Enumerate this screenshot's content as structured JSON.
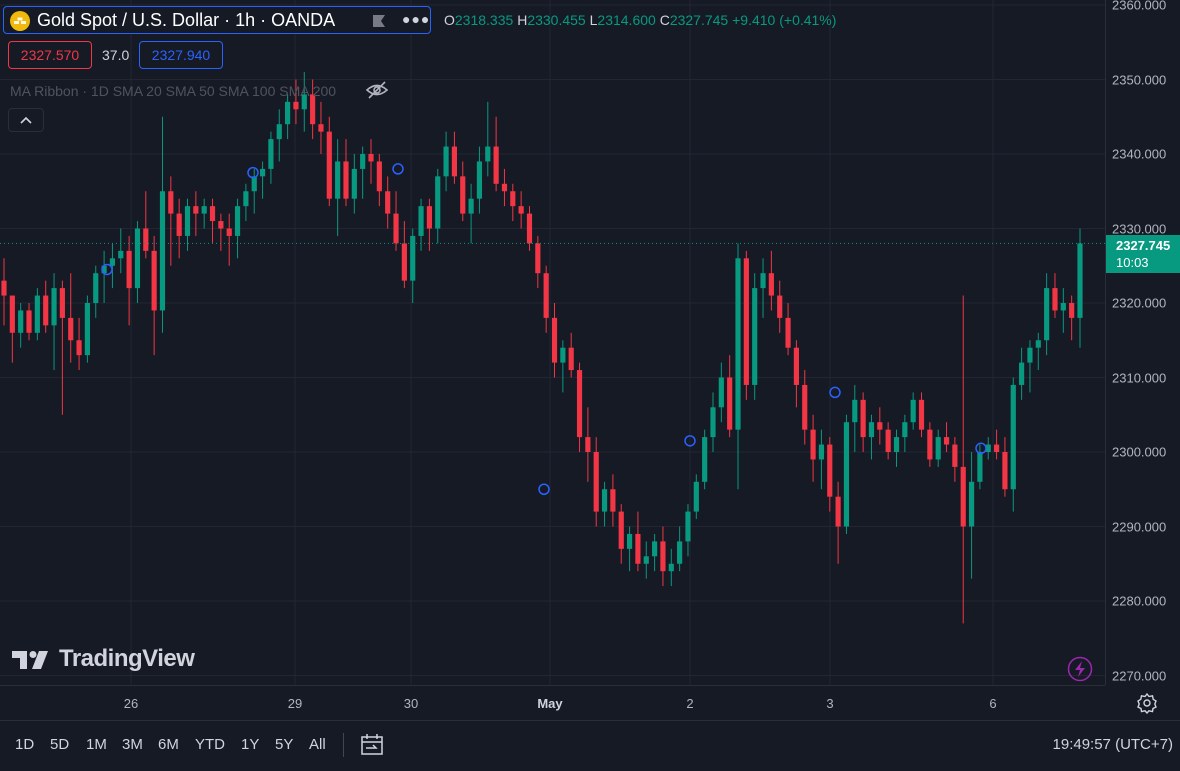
{
  "header": {
    "symbol_title": "Gold Spot / U.S. Dollar · 1h · OANDA",
    "more_icon": "ellipsis-icon",
    "ohlc": {
      "o_label": "O",
      "o": "2318.335",
      "h_label": "H",
      "h": "2330.455",
      "l_label": "L",
      "l": "2314.600",
      "c_label": "C",
      "c": "2327.745",
      "change": "+9.410 (+0.41%)"
    }
  },
  "trade": {
    "sell": "2327.570",
    "spread": "37.0",
    "buy": "2327.940"
  },
  "indicator": {
    "label": "MA Ribbon · 1D SMA 20 SMA 50 SMA 100 SMA 200",
    "eye_icon": "eye-slash-icon"
  },
  "price_axis": {
    "ticks": [
      "2360.000",
      "2350.000",
      "2340.000",
      "2330.000",
      "2320.000",
      "2310.000",
      "2300.000",
      "2290.000",
      "2280.000",
      "2270.000"
    ]
  },
  "last_price": {
    "value": "2327.745",
    "countdown": "10:03"
  },
  "time_axis": {
    "ticks": [
      {
        "label": "26"
      },
      {
        "label": "29"
      },
      {
        "label": "30"
      },
      {
        "label": "May",
        "bold": true
      },
      {
        "label": "2"
      },
      {
        "label": "3"
      },
      {
        "label": "6"
      }
    ]
  },
  "logo": {
    "text": "TradingView"
  },
  "bottom_bar": {
    "ranges": [
      "1D",
      "5D",
      "1M",
      "3M",
      "6M",
      "YTD",
      "1Y",
      "5Y",
      "All"
    ],
    "clock": "19:49:57 (UTC+7)"
  },
  "colors": {
    "up": "#089981",
    "down": "#f23645",
    "background": "#161a25",
    "grid": "#232632",
    "accent": "#2962ff"
  },
  "chart_data": {
    "type": "candlestick",
    "symbol": "XAUUSD",
    "interval": "1h",
    "ylim": [
      2266,
      2361
    ],
    "candles": [
      [
        2323,
        2326,
        2317,
        2321
      ],
      [
        2321,
        2321,
        2312,
        2316
      ],
      [
        2316,
        2320,
        2314,
        2319
      ],
      [
        2319,
        2320,
        2315,
        2316
      ],
      [
        2316,
        2322,
        2315,
        2321
      ],
      [
        2321,
        2323,
        2316,
        2317
      ],
      [
        2317,
        2324,
        2311,
        2322
      ],
      [
        2322,
        2323,
        2305,
        2318
      ],
      [
        2318,
        2324,
        2312,
        2315
      ],
      [
        2315,
        2318,
        2311,
        2313
      ],
      [
        2313,
        2321,
        2312,
        2320
      ],
      [
        2320,
        2325,
        2318,
        2324
      ],
      [
        2324,
        2327,
        2320,
        2325
      ],
      [
        2325,
        2328,
        2322,
        2326
      ],
      [
        2326,
        2330,
        2324,
        2327
      ],
      [
        2327,
        2329,
        2317,
        2322
      ],
      [
        2322,
        2331,
        2320,
        2330
      ],
      [
        2330,
        2335,
        2326,
        2327
      ],
      [
        2327,
        2329,
        2313,
        2319
      ],
      [
        2319,
        2345,
        2316,
        2335
      ],
      [
        2335,
        2337,
        2325,
        2332
      ],
      [
        2332,
        2334,
        2326,
        2329
      ],
      [
        2329,
        2334,
        2327,
        2333
      ],
      [
        2333,
        2335,
        2329,
        2332
      ],
      [
        2332,
        2334,
        2330,
        2333
      ],
      [
        2333,
        2334,
        2328,
        2331
      ],
      [
        2331,
        2332,
        2327,
        2330
      ],
      [
        2330,
        2332,
        2325,
        2329
      ],
      [
        2329,
        2334,
        2326,
        2333
      ],
      [
        2333,
        2336,
        2331,
        2335
      ],
      [
        2335,
        2338,
        2332,
        2337
      ],
      [
        2337,
        2339,
        2334,
        2338
      ],
      [
        2338,
        2343,
        2336,
        2342
      ],
      [
        2342,
        2346,
        2339,
        2344
      ],
      [
        2344,
        2348,
        2342,
        2347
      ],
      [
        2347,
        2350,
        2344,
        2346
      ],
      [
        2346,
        2351,
        2343,
        2348
      ],
      [
        2348,
        2350,
        2342,
        2344
      ],
      [
        2344,
        2347,
        2340,
        2343
      ],
      [
        2343,
        2345,
        2333,
        2334
      ],
      [
        2334,
        2342,
        2329,
        2339
      ],
      [
        2339,
        2342,
        2333,
        2334
      ],
      [
        2334,
        2340,
        2332,
        2338
      ],
      [
        2338,
        2341,
        2334,
        2340
      ],
      [
        2340,
        2342,
        2336,
        2339
      ],
      [
        2339,
        2340,
        2333,
        2335
      ],
      [
        2335,
        2337,
        2330,
        2332
      ],
      [
        2332,
        2335,
        2327,
        2328
      ],
      [
        2328,
        2331,
        2322,
        2323
      ],
      [
        2323,
        2330,
        2320,
        2329
      ],
      [
        2329,
        2334,
        2327,
        2333
      ],
      [
        2333,
        2334,
        2327,
        2330
      ],
      [
        2330,
        2338,
        2328,
        2337
      ],
      [
        2337,
        2343,
        2335,
        2341
      ],
      [
        2341,
        2343,
        2336,
        2337
      ],
      [
        2337,
        2339,
        2331,
        2332
      ],
      [
        2332,
        2336,
        2328,
        2334
      ],
      [
        2334,
        2341,
        2332,
        2339
      ],
      [
        2339,
        2347,
        2337,
        2341
      ],
      [
        2341,
        2345,
        2335,
        2336
      ],
      [
        2336,
        2338,
        2333,
        2335
      ],
      [
        2335,
        2336,
        2331,
        2333
      ],
      [
        2333,
        2335,
        2330,
        2332
      ],
      [
        2332,
        2333,
        2327,
        2328
      ],
      [
        2328,
        2329,
        2322,
        2324
      ],
      [
        2324,
        2325,
        2316,
        2318
      ],
      [
        2318,
        2320,
        2310,
        2312
      ],
      [
        2312,
        2315,
        2308,
        2314
      ],
      [
        2314,
        2316,
        2310,
        2311
      ],
      [
        2311,
        2312,
        2300,
        2302
      ],
      [
        2302,
        2306,
        2296,
        2300
      ],
      [
        2300,
        2302,
        2290,
        2292
      ],
      [
        2292,
        2296,
        2290,
        2295
      ],
      [
        2295,
        2297,
        2290,
        2292
      ],
      [
        2292,
        2293,
        2285,
        2287
      ],
      [
        2287,
        2290,
        2284,
        2289
      ],
      [
        2289,
        2292,
        2284,
        2285
      ],
      [
        2285,
        2288,
        2283,
        2286
      ],
      [
        2286,
        2289,
        2284,
        2288
      ],
      [
        2288,
        2290,
        2282,
        2284
      ],
      [
        2284,
        2287,
        2282,
        2285
      ],
      [
        2285,
        2290,
        2284,
        2288
      ],
      [
        2288,
        2293,
        2286,
        2292
      ],
      [
        2292,
        2297,
        2291,
        2296
      ],
      [
        2296,
        2303,
        2295,
        2302
      ],
      [
        2302,
        2308,
        2300,
        2306
      ],
      [
        2306,
        2312,
        2304,
        2310
      ],
      [
        2310,
        2313,
        2302,
        2303
      ],
      [
        2303,
        2328,
        2295,
        2326
      ],
      [
        2326,
        2327,
        2307,
        2309
      ],
      [
        2309,
        2324,
        2307,
        2322
      ],
      [
        2322,
        2326,
        2318,
        2324
      ],
      [
        2324,
        2327,
        2319,
        2321
      ],
      [
        2321,
        2323,
        2316,
        2318
      ],
      [
        2318,
        2320,
        2313,
        2314
      ],
      [
        2314,
        2315,
        2306,
        2309
      ],
      [
        2309,
        2311,
        2301,
        2303
      ],
      [
        2303,
        2305,
        2296,
        2299
      ],
      [
        2299,
        2303,
        2295,
        2301
      ],
      [
        2301,
        2302,
        2292,
        2294
      ],
      [
        2294,
        2296,
        2285,
        2290
      ],
      [
        2290,
        2305,
        2289,
        2304
      ],
      [
        2304,
        2309,
        2300,
        2307
      ],
      [
        2307,
        2308,
        2300,
        2302
      ],
      [
        2302,
        2305,
        2299,
        2304
      ],
      [
        2304,
        2306,
        2301,
        2303
      ],
      [
        2303,
        2304,
        2299,
        2300
      ],
      [
        2300,
        2303,
        2298,
        2302
      ],
      [
        2302,
        2305,
        2300,
        2304
      ],
      [
        2304,
        2308,
        2303,
        2307
      ],
      [
        2307,
        2308,
        2302,
        2303
      ],
      [
        2303,
        2304,
        2298,
        2299
      ],
      [
        2299,
        2303,
        2298,
        2302
      ],
      [
        2302,
        2304,
        2300,
        2301
      ],
      [
        2301,
        2302,
        2296,
        2298
      ],
      [
        2298,
        2321,
        2277,
        2290
      ],
      [
        2290,
        2300,
        2283,
        2296
      ],
      [
        2296,
        2301,
        2295,
        2300
      ],
      [
        2300,
        2302,
        2299,
        2301
      ],
      [
        2301,
        2303,
        2299,
        2300
      ],
      [
        2300,
        2302,
        2294,
        2295
      ],
      [
        2295,
        2310,
        2292,
        2309
      ],
      [
        2309,
        2314,
        2307,
        2312
      ],
      [
        2312,
        2315,
        2308,
        2314
      ],
      [
        2314,
        2316,
        2311,
        2315
      ],
      [
        2315,
        2324,
        2313,
        2322
      ],
      [
        2322,
        2324,
        2318,
        2319
      ],
      [
        2319,
        2322,
        2316,
        2320
      ],
      [
        2320,
        2321,
        2315,
        2318
      ],
      [
        2318,
        2330,
        2314,
        2328
      ]
    ]
  }
}
